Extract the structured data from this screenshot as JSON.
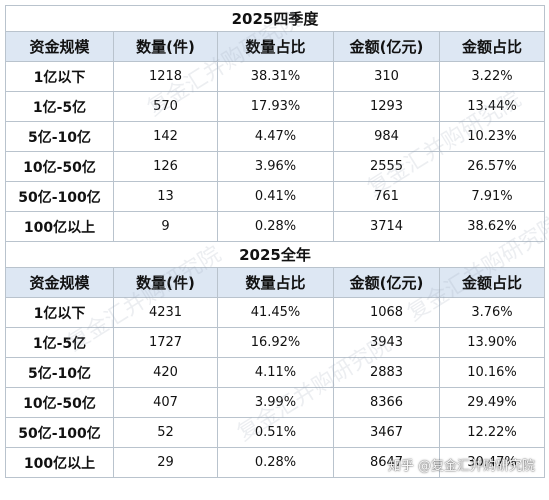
{
  "sections": [
    {
      "title": "2025四季度",
      "headers": [
        "资金规模",
        "数量(件)",
        "数量占比",
        "金额(亿元)",
        "金额占比"
      ],
      "rows": [
        {
          "scale": "1亿以下",
          "count": "1218",
          "count_share": "38.31%",
          "amount": "310",
          "amount_share": "3.22%"
        },
        {
          "scale": "1亿-5亿",
          "count": "570",
          "count_share": "17.93%",
          "amount": "1293",
          "amount_share": "13.44%"
        },
        {
          "scale": "5亿-10亿",
          "count": "142",
          "count_share": "4.47%",
          "amount": "984",
          "amount_share": "10.23%"
        },
        {
          "scale": "10亿-50亿",
          "count": "126",
          "count_share": "3.96%",
          "amount": "2555",
          "amount_share": "26.57%"
        },
        {
          "scale": "50亿-100亿",
          "count": "13",
          "count_share": "0.41%",
          "amount": "761",
          "amount_share": "7.91%"
        },
        {
          "scale": "100亿以上",
          "count": "9",
          "count_share": "0.28%",
          "amount": "3714",
          "amount_share": "38.62%"
        }
      ]
    },
    {
      "title": "2025全年",
      "headers": [
        "资金规模",
        "数量(件)",
        "数量占比",
        "金额(亿元)",
        "金额占比"
      ],
      "rows": [
        {
          "scale": "1亿以下",
          "count": "4231",
          "count_share": "41.45%",
          "amount": "1068",
          "amount_share": "3.76%"
        },
        {
          "scale": "1亿-5亿",
          "count": "1727",
          "count_share": "16.92%",
          "amount": "3943",
          "amount_share": "13.90%"
        },
        {
          "scale": "5亿-10亿",
          "count": "420",
          "count_share": "4.11%",
          "amount": "2883",
          "amount_share": "10.16%"
        },
        {
          "scale": "10亿-50亿",
          "count": "407",
          "count_share": "3.99%",
          "amount": "8366",
          "amount_share": "29.49%"
        },
        {
          "scale": "50亿-100亿",
          "count": "52",
          "count_share": "0.51%",
          "amount": "3467",
          "amount_share": "12.22%"
        },
        {
          "scale": "100亿以上",
          "count": "29",
          "count_share": "0.28%",
          "amount": "8647",
          "amount_share": "30.47%"
        }
      ]
    }
  ],
  "watermark": {
    "text": "复金汇并购研究院"
  },
  "footer_watermark": {
    "text": "知乎 @复金汇并购研究院"
  },
  "colors": {
    "header_background": "#dde7f3",
    "border": "#b9c3cd",
    "text": "#111111"
  }
}
